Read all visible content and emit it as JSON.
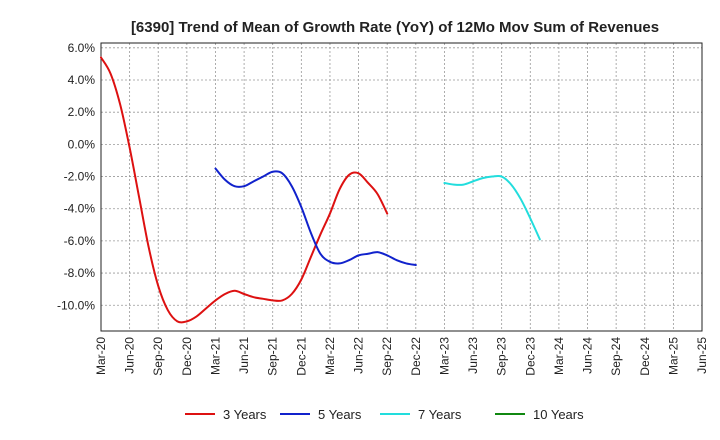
{
  "chart_data": {
    "type": "line",
    "title": "[6390]  Trend of Mean of Growth Rate (YoY) of 12Mo Mov Sum of Revenues",
    "xlabel": "",
    "ylabel": "",
    "x_ticks": [
      "Mar-20",
      "Jun-20",
      "Sep-20",
      "Dec-20",
      "Mar-21",
      "Jun-21",
      "Sep-21",
      "Dec-21",
      "Mar-22",
      "Jun-22",
      "Sep-22",
      "Dec-22",
      "Mar-23",
      "Jun-23",
      "Sep-23",
      "Dec-23",
      "Mar-24",
      "Jun-24",
      "Sep-24",
      "Dec-24",
      "Mar-25",
      "Jun-25"
    ],
    "y_ticks": [
      "6.0%",
      "4.0%",
      "2.0%",
      "0.0%",
      "-2.0%",
      "-4.0%",
      "-6.0%",
      "-8.0%",
      "-10.0%"
    ],
    "y_tick_values": [
      6,
      4,
      2,
      0,
      -2,
      -4,
      -6,
      -8,
      -10
    ],
    "ylim": [
      -11.6,
      6.3
    ],
    "grid": true,
    "legend_position": "bottom",
    "series": [
      {
        "name": "3 Years",
        "color": "#dd1111",
        "start_index": 0,
        "values": [
          5.4,
          4.4,
          2.5,
          -0.2,
          -3.3,
          -6.4,
          -8.8,
          -10.3,
          -11.0,
          -11.0,
          -10.7,
          -10.2,
          -9.7,
          -9.3,
          -9.1,
          -9.3,
          -9.5,
          -9.6,
          -9.7,
          -9.7,
          -9.3,
          -8.4,
          -7.0,
          -5.6,
          -4.3,
          -2.8,
          -1.9,
          -1.8,
          -2.4,
          -3.1,
          -4.3
        ]
      },
      {
        "name": "5 Years",
        "color": "#1122cc",
        "start_index": 12,
        "values": [
          -1.5,
          -2.2,
          -2.6,
          -2.6,
          -2.3,
          -2.0,
          -1.7,
          -1.8,
          -2.6,
          -3.9,
          -5.5,
          -6.8,
          -7.3,
          -7.4,
          -7.2,
          -6.9,
          -6.8,
          -6.7,
          -6.9,
          -7.2,
          -7.4,
          -7.5
        ]
      },
      {
        "name": "7 Years",
        "color": "#22dddd",
        "start_index": 36,
        "values": [
          -2.4,
          -2.5,
          -2.5,
          -2.3,
          -2.1,
          -2.0,
          -2.0,
          -2.5,
          -3.4,
          -4.6,
          -5.9
        ]
      },
      {
        "name": "10 Years",
        "color": "#118811",
        "start_index": 0,
        "values": []
      }
    ]
  }
}
